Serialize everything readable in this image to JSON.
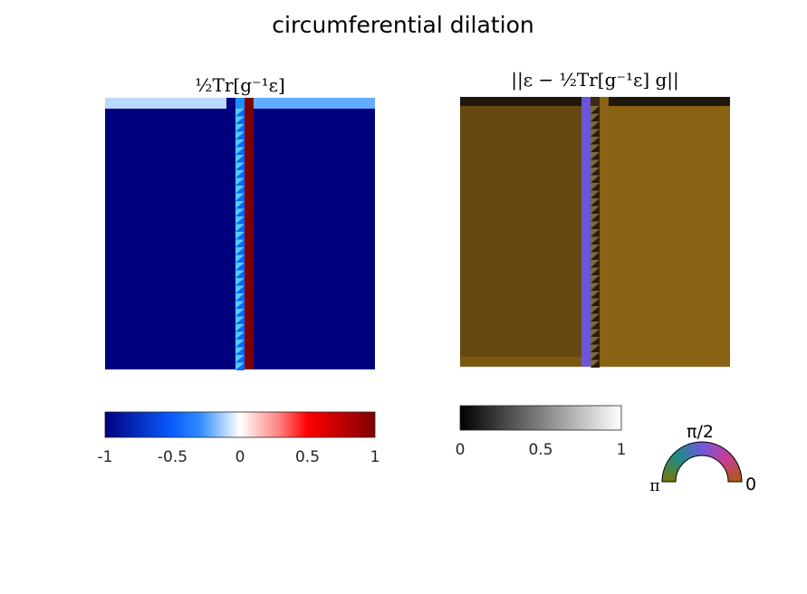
{
  "figure": {
    "title": "circumferential dilation"
  },
  "chart_data": [
    {
      "type": "heatmap",
      "title": "½Tr[g⁻¹ε]",
      "colormap": "blue-white-red",
      "clim": [
        -1,
        1
      ],
      "colorbar": {
        "ticks": [
          "-1",
          "-0.5",
          "0",
          "0.5",
          "1"
        ],
        "placement": "bottom"
      },
      "regions": [
        {
          "label": "background",
          "value": -1
        },
        {
          "label": "top-strip",
          "value": -0.45
        },
        {
          "label": "seam-triangles",
          "value": -0.55
        },
        {
          "label": "seam-band",
          "value": 1
        }
      ]
    },
    {
      "type": "heatmap",
      "title": "||ε − ½Tr[g⁻¹ε] g||",
      "colormap": "gray",
      "clim": [
        0,
        1
      ],
      "colorbar": {
        "ticks": [
          "0",
          "0.5",
          "1"
        ],
        "placement": "bottom"
      },
      "colors": {
        "left-field": "#664810",
        "right-field": "#8a6214",
        "seam": "#6b55d8",
        "top-strip": "#1f160c"
      },
      "orientation_key": {
        "labels": [
          "π/2",
          "π",
          "0"
        ],
        "meaning": "hue encodes direction"
      }
    }
  ]
}
